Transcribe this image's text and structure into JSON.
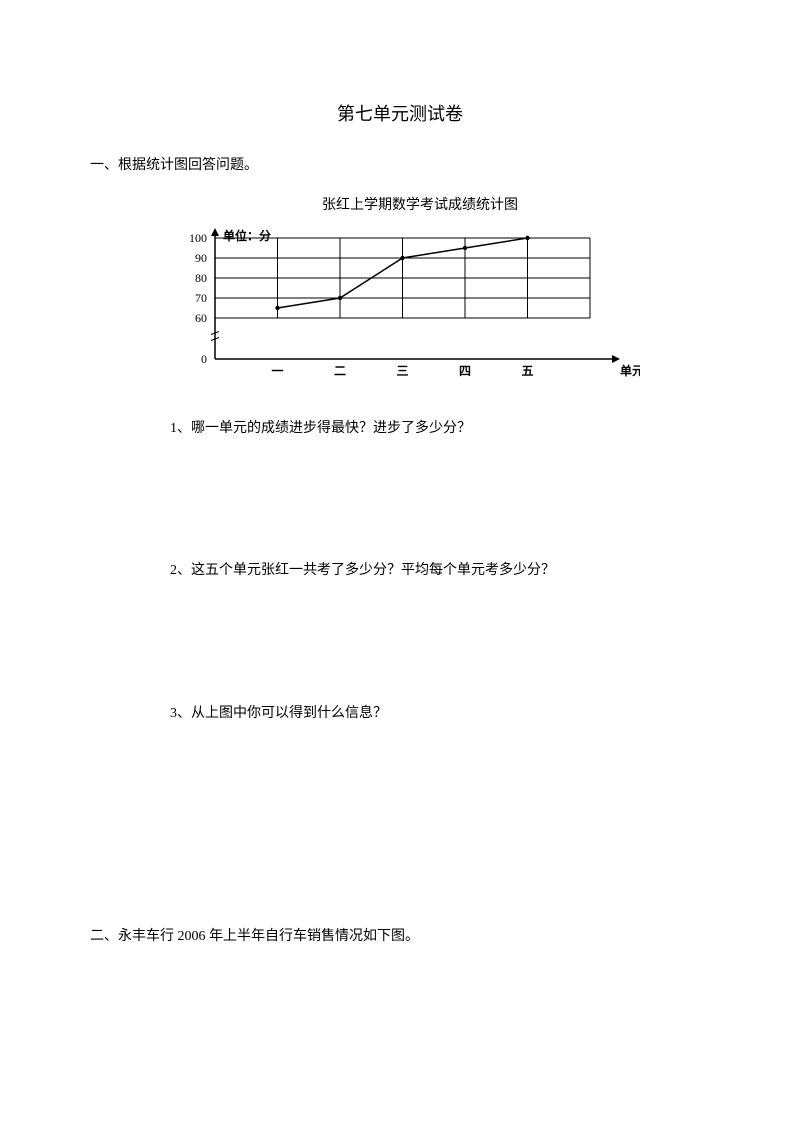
{
  "title": "第七单元测试卷",
  "section1": {
    "heading": "一、根据统计图回答问题。",
    "chart_title": "张红上学期数学考试成绩统计图",
    "chart": {
      "type": "line",
      "y_label": "单位：分",
      "x_label": "单元",
      "y_ticks": [
        0,
        60,
        70,
        80,
        90,
        100
      ],
      "x_ticks": [
        "一",
        "二",
        "三",
        "四",
        "五"
      ],
      "values": [
        65,
        70,
        90,
        95,
        100
      ],
      "ylim": [
        0,
        100
      ],
      "line_color": "#000000",
      "grid_color": "#000000",
      "background_color": "#ffffff",
      "axis_fontsize": 12,
      "line_width": 1.5,
      "broken_axis_between": [
        0,
        60
      ]
    },
    "q1": "1、哪一单元的成绩进步得最快？进步了多少分？",
    "q2": "2、这五个单元张红一共考了多少分？平均每个单元考多少分？",
    "q3": "3、从上图中你可以得到什么信息？"
  },
  "section2": {
    "heading": "二、永丰车行 2006 年上半年自行车销售情况如下图。"
  }
}
